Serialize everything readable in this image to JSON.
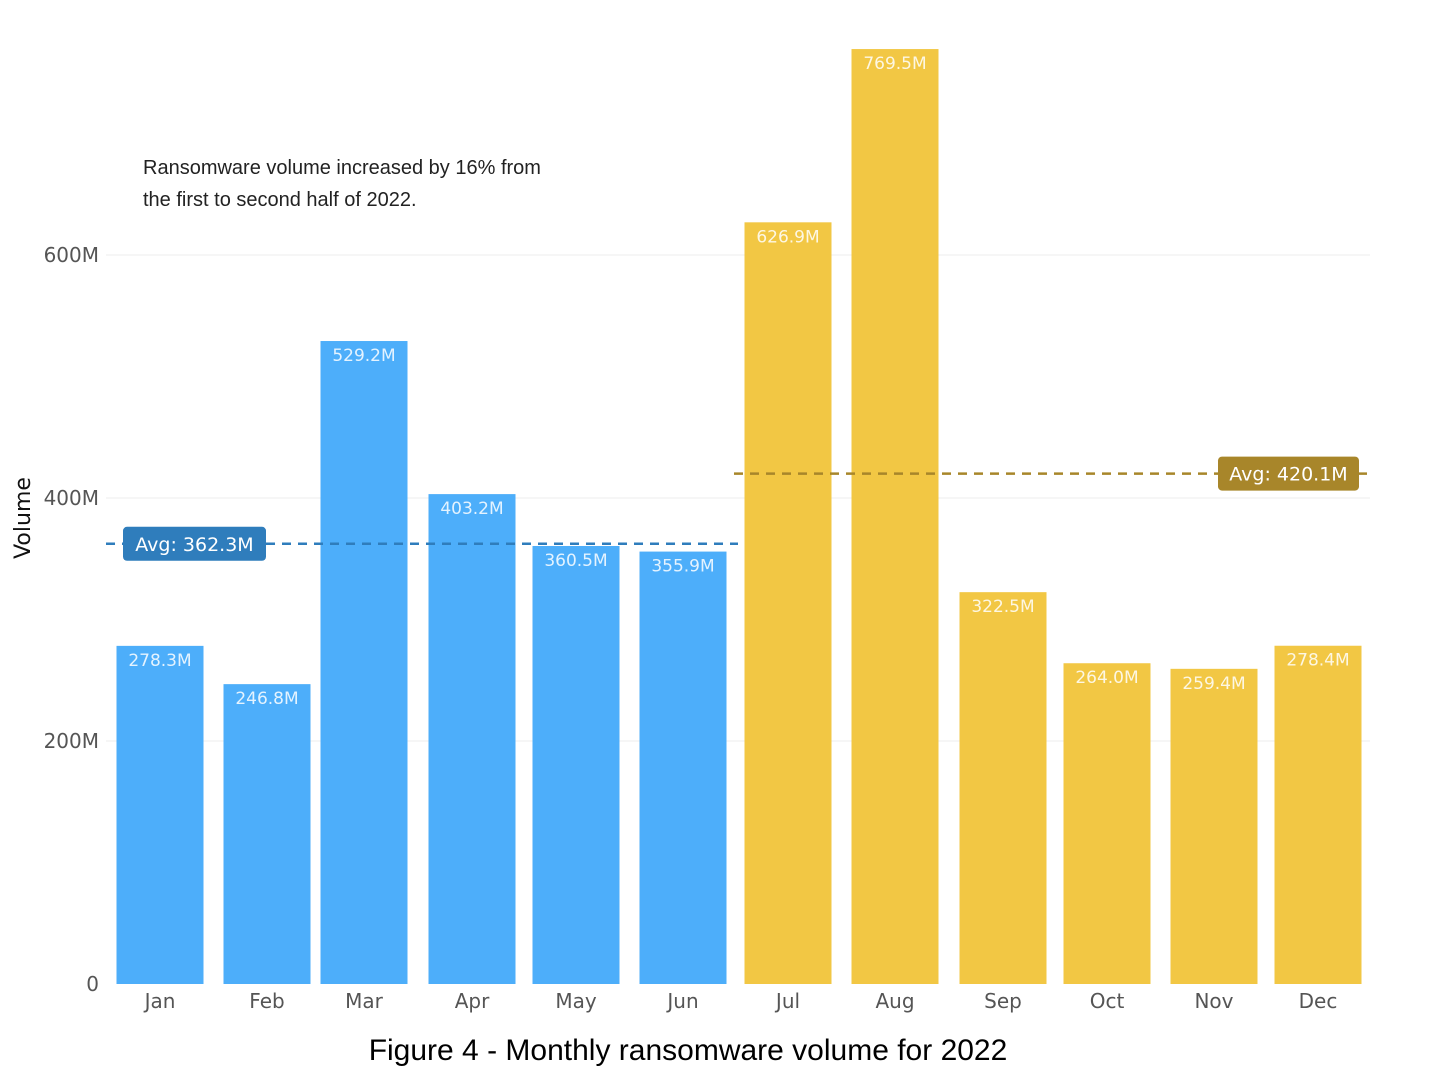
{
  "chart_data": {
    "type": "bar",
    "categories": [
      "Jan",
      "Feb",
      "Mar",
      "Apr",
      "May",
      "Jun",
      "Jul",
      "Aug",
      "Sep",
      "Oct",
      "Nov",
      "Dec"
    ],
    "values": [
      278.3,
      246.8,
      529.2,
      403.2,
      360.5,
      355.9,
      626.9,
      769.5,
      322.5,
      264.0,
      259.4,
      278.4
    ],
    "value_labels": [
      "278.3M",
      "246.8M",
      "529.2M",
      "403.2M",
      "360.5M",
      "355.9M",
      "626.9M",
      "769.5M",
      "322.5M",
      "264.0M",
      "259.4M",
      "278.4M"
    ],
    "bar_colors": [
      "#4daefa",
      "#4daefa",
      "#4daefa",
      "#4daefa",
      "#4daefa",
      "#4daefa",
      "#f2c744",
      "#f2c744",
      "#f2c744",
      "#f2c744",
      "#f2c744",
      "#f2c744"
    ],
    "ylabel": "Volume",
    "ylim": [
      0,
      800
    ],
    "yticks": [
      0,
      200,
      400,
      600
    ],
    "ytick_labels": [
      "0",
      "200M",
      "400M",
      "600M"
    ],
    "grid": true,
    "annotation": [
      "Ransomware volume increased by 16% from",
      "the first to second half of 2022."
    ],
    "averages": [
      {
        "label": "Avg: 362.3M",
        "value": 362.3,
        "months": [
          "Jan",
          "Feb",
          "Mar",
          "Apr",
          "May",
          "Jun"
        ],
        "color": "#2f7dbc"
      },
      {
        "label": "Avg: 420.1M",
        "value": 420.1,
        "months": [
          "Jul",
          "Aug",
          "Sep",
          "Oct",
          "Nov",
          "Dec"
        ],
        "color": "#a8862a"
      }
    ]
  },
  "caption": "Figure 4 - Monthly ransomware volume for 2022"
}
